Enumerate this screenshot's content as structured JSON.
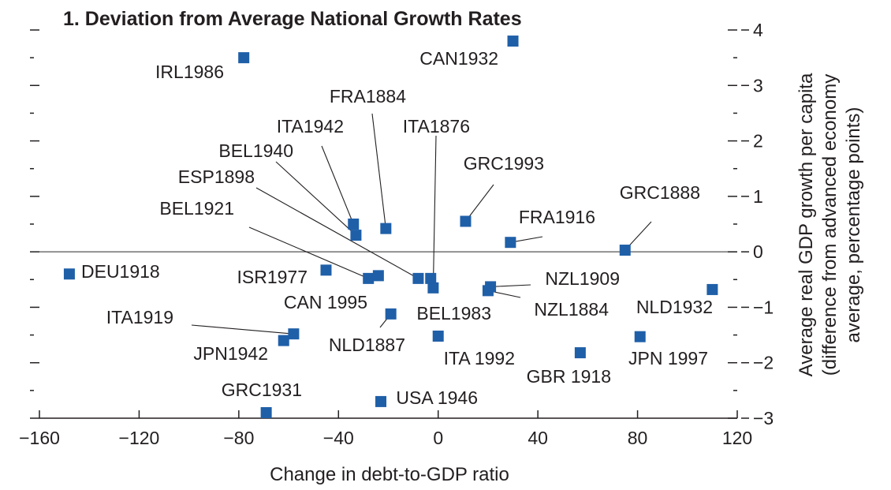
{
  "chart_data": {
    "type": "scatter",
    "title": "1.  Deviation from Average National Growth Rates",
    "xlabel": "Change in debt-to-GDP ratio",
    "ylabel": [
      "Average real GDP growth per capita",
      "(difference from advanced economy",
      "average, percentage points)"
    ],
    "xlim": [
      -160,
      120
    ],
    "ylim": [
      -3,
      4
    ],
    "x_ticks": [
      -160,
      -120,
      -80,
      -40,
      0,
      40,
      80,
      120
    ],
    "x_tick_labels": [
      "−160",
      "−120",
      "−80",
      "−40",
      "0",
      "40",
      "80",
      "120"
    ],
    "y_ticks": [
      4,
      3,
      2,
      1,
      0,
      -1,
      -2,
      -3
    ],
    "y_tick_labels": [
      "4",
      "3",
      "2",
      "1",
      "0",
      "−1",
      "−2",
      "−3"
    ],
    "marker_color": "#1f5fa8",
    "points": [
      {
        "label": "IRL1986",
        "x": -78,
        "y": 3.5
      },
      {
        "label": "CAN1932",
        "x": 30,
        "y": 3.8
      },
      {
        "label": "FRA1884",
        "x": -21,
        "y": 0.42
      },
      {
        "label": "ITA1942",
        "x": -34,
        "y": 0.5
      },
      {
        "label": "ITA1876",
        "x": -2,
        "y": -0.65
      },
      {
        "label": "BEL1940",
        "x": -33,
        "y": 0.3
      },
      {
        "label": "ESP1898",
        "x": -8,
        "y": -0.48
      },
      {
        "label": "GRC1993",
        "x": 11,
        "y": 0.55
      },
      {
        "label": "BEL1921",
        "x": -28,
        "y": -0.48
      },
      {
        "label": "GRC1888",
        "x": 75,
        "y": 0.03
      },
      {
        "label": "FRA1916",
        "x": 29,
        "y": 0.17
      },
      {
        "label": "DEU1918",
        "x": -148,
        "y": -0.4
      },
      {
        "label": "ISR1977",
        "x": -45,
        "y": -0.33
      },
      {
        "label": "CAN 1995",
        "x": -24,
        "y": -0.43
      },
      {
        "label": "BEL1983",
        "x": -3,
        "y": -0.48
      },
      {
        "label": "NZL1909",
        "x": 21,
        "y": -0.63
      },
      {
        "label": "NZL1884",
        "x": 20,
        "y": -0.7
      },
      {
        "label": "NLD1932",
        "x": 110,
        "y": -0.68
      },
      {
        "label": "NLD1887",
        "x": -19,
        "y": -1.12
      },
      {
        "label": "ITA1919",
        "x": -58,
        "y": -1.48
      },
      {
        "label": "JPN1942",
        "x": -62,
        "y": -1.6
      },
      {
        "label": "ITA 1992",
        "x": 0,
        "y": -1.52
      },
      {
        "label": "JPN 1997",
        "x": 81,
        "y": -1.53
      },
      {
        "label": "GBR 1918",
        "x": 57,
        "y": -1.82
      },
      {
        "label": "GRC1931",
        "x": -69,
        "y": -2.9
      },
      {
        "label": "USA 1946",
        "x": -23,
        "y": -2.7
      }
    ]
  }
}
